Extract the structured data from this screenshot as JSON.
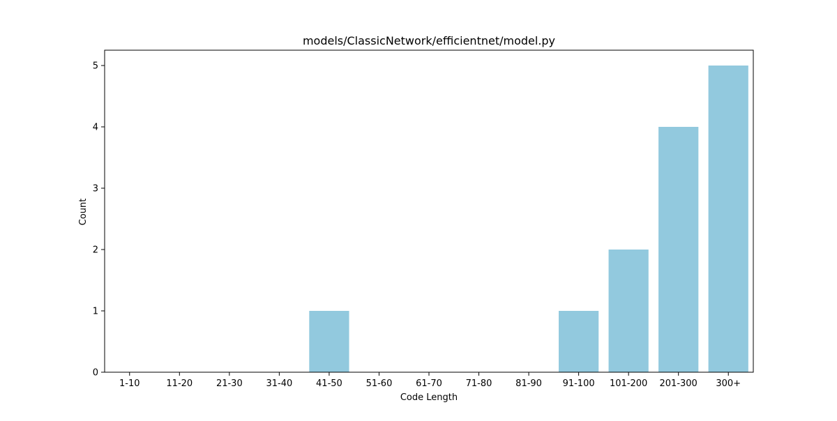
{
  "chart_data": {
    "type": "bar",
    "title": "models/ClassicNetwork/efficientnet/model.py",
    "xlabel": "Code Length",
    "ylabel": "Count",
    "categories": [
      "1-10",
      "11-20",
      "21-30",
      "31-40",
      "41-50",
      "51-60",
      "61-70",
      "71-80",
      "81-90",
      "91-100",
      "101-200",
      "201-300",
      "300+"
    ],
    "values": [
      0,
      0,
      0,
      0,
      1,
      0,
      0,
      0,
      0,
      1,
      2,
      4,
      5
    ],
    "ylim": [
      0,
      5.25
    ],
    "yticks": [
      0,
      1,
      2,
      3,
      4,
      5
    ],
    "grid": false,
    "bar_color": "#92c9de"
  }
}
